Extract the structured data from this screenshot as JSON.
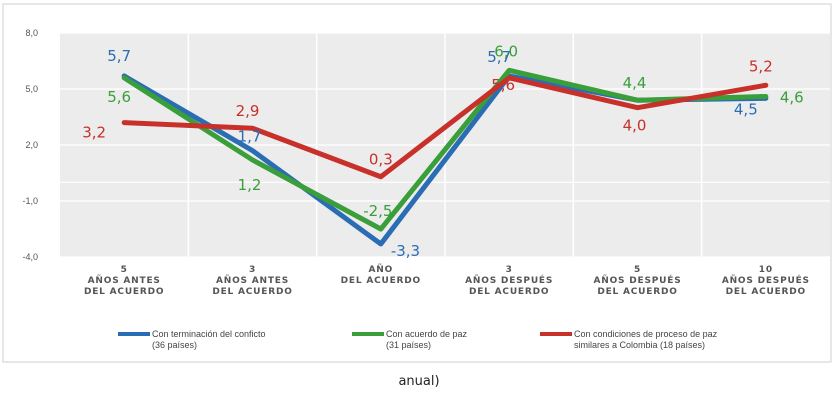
{
  "caption": "anual)",
  "chart_data": {
    "type": "line",
    "categories": [
      [
        "5",
        "AÑOS ANTES",
        "DEL ACUERDO"
      ],
      [
        "3",
        "AÑOS ANTES",
        "DEL ACUERDO"
      ],
      [
        "AÑO",
        "DEL ACUERDO"
      ],
      [
        "3",
        "AÑOS DESPUÉS",
        "DEL ACUERDO"
      ],
      [
        "5",
        "AÑOS DESPUÉS",
        "DEL ACUERDO"
      ],
      [
        "10",
        "AÑOS DESPUÉS",
        "DEL ACUERDO"
      ]
    ],
    "ylim": [
      -4.0,
      8.0
    ],
    "yticks": [
      "8,0",
      "5,0",
      "2,0",
      "-1,0",
      "-4,0"
    ],
    "ytick_values": [
      8,
      5,
      2,
      -1,
      -4
    ],
    "grid": true,
    "legend_position": "bottom",
    "series": [
      {
        "name": "Con terminación del conficto (36 países)",
        "legend_lines": [
          "Con terminación del conficto",
          "(36 países)"
        ],
        "color": "#2a6db5",
        "values": [
          5.7,
          1.7,
          -3.3,
          5.7,
          4.4,
          4.5
        ],
        "labels": [
          "5,7",
          "1,7",
          "-3,3",
          "5,7",
          "",
          "4,5"
        ]
      },
      {
        "name": "Con acuerdo de paz (31 países)",
        "legend_lines": [
          "Con acuerdo de paz",
          "(31 países)"
        ],
        "color": "#3a9e3a",
        "values": [
          5.6,
          1.2,
          -2.5,
          6.0,
          4.4,
          4.6
        ],
        "labels": [
          "5,6",
          "1,2",
          "-2,5",
          "6,0",
          "4,4",
          "4,6"
        ]
      },
      {
        "name": "Con condiciones de proceso de paz similares a Colombia (18 países)",
        "legend_lines": [
          "Con condiciones de proceso de paz",
          "similares a Colombia (18 países)"
        ],
        "color": "#c8302a",
        "values": [
          3.2,
          2.9,
          0.3,
          5.6,
          4.0,
          5.2
        ],
        "labels": [
          "3,2",
          "2,9",
          "0,3",
          "5,6",
          "4,0",
          "5,2"
        ]
      }
    ]
  }
}
